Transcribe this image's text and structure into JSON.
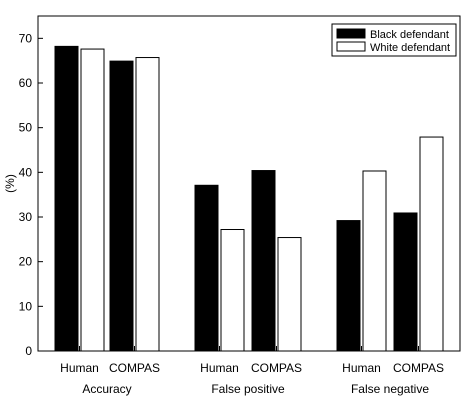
{
  "chart_data": {
    "type": "bar",
    "title": "",
    "xlabel": "",
    "ylabel": "(%)",
    "ylim": [
      0,
      75
    ],
    "yticks": [
      0,
      10,
      20,
      30,
      40,
      50,
      60,
      70
    ],
    "grid": false,
    "legend_position": "top-right",
    "groups": [
      {
        "label": "Accuracy",
        "categories": [
          "Human",
          "COMPAS"
        ]
      },
      {
        "label": "False positive",
        "categories": [
          "Human",
          "COMPAS"
        ]
      },
      {
        "label": "False negative",
        "categories": [
          "Human",
          "COMPAS"
        ]
      }
    ],
    "series": [
      {
        "name": "Black defendant",
        "color": "#000000",
        "values": [
          68.2,
          64.9,
          37.1,
          40.4,
          29.2,
          30.9
        ]
      },
      {
        "name": "White defendant",
        "color": "#ffffff",
        "values": [
          67.6,
          65.7,
          27.2,
          25.4,
          40.3,
          47.9
        ]
      }
    ]
  }
}
